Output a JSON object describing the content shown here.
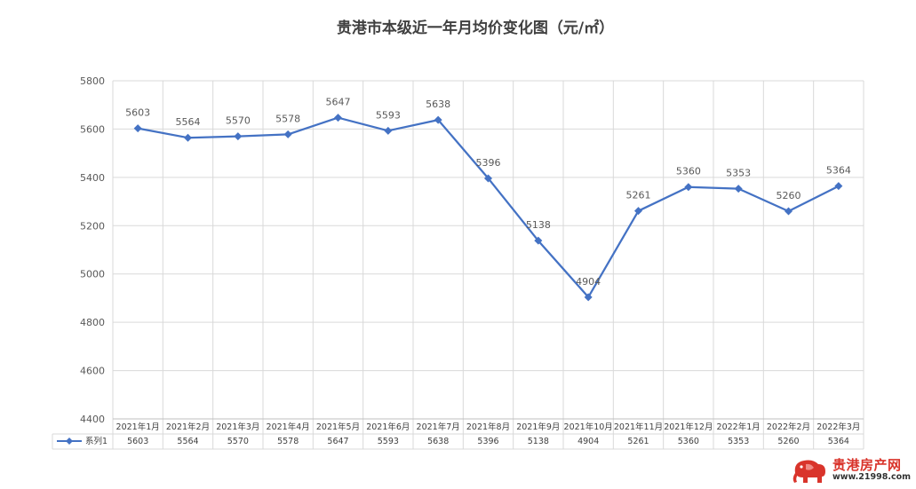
{
  "title": "贵港市本级近一年月均价变化图（元/㎡）",
  "watermark": {
    "brand": "贵港房产网",
    "url": "www.21998.com"
  },
  "colors": {
    "line": "#4472c4",
    "grid": "#d9d9d9",
    "axis": "#bfbfbf",
    "watermark_red": "#d9342b"
  },
  "chart_data": {
    "type": "line",
    "title": "贵港市本级近一年月均价变化图（元/㎡）",
    "categories": [
      "2021年1月",
      "2021年2月",
      "2021年3月",
      "2021年4月",
      "2021年5月",
      "2021年6月",
      "2021年7月",
      "2021年8月",
      "2021年9月",
      "2021年10月",
      "2021年11月",
      "2021年12月",
      "2022年1月",
      "2022年2月",
      "2022年3月"
    ],
    "series": [
      {
        "name": "系列1",
        "values": [
          5603,
          5564,
          5570,
          5578,
          5647,
          5593,
          5638,
          5396,
          5138,
          4904,
          5261,
          5360,
          5353,
          5260,
          5364
        ]
      }
    ],
    "xlabel": "",
    "ylabel": "",
    "ylim": [
      4400,
      5800
    ],
    "yticks": [
      4400,
      4600,
      4800,
      5000,
      5200,
      5400,
      5600,
      5800
    ],
    "grid": true,
    "legend": "bottom-left data table",
    "data_table": true
  }
}
